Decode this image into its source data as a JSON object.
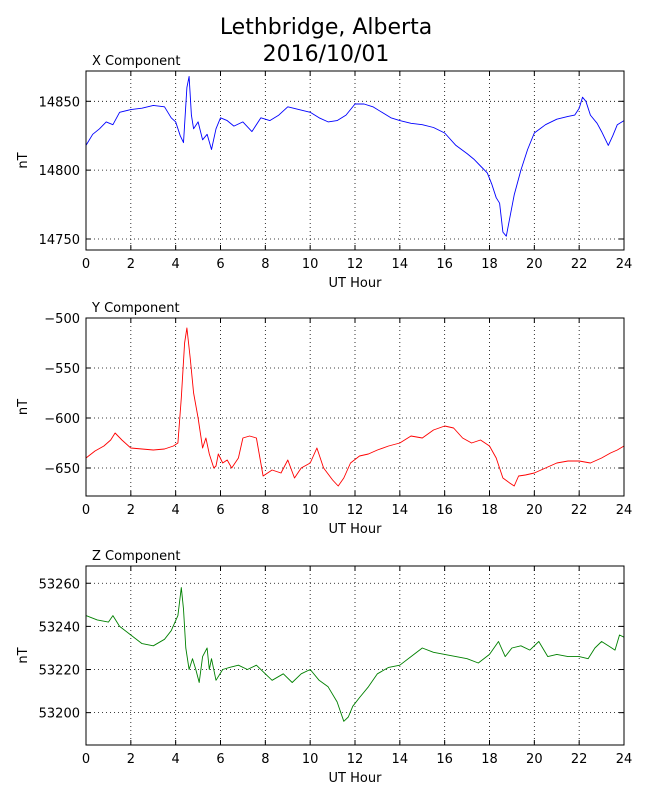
{
  "figure": {
    "title_line1": "Lethbridge, Alberta",
    "title_line2": "2016/10/01"
  },
  "chart_data": [
    {
      "type": "line",
      "title": "X Component",
      "xlabel": "UT Hour",
      "ylabel": "nT",
      "xlim": [
        0,
        24
      ],
      "ylim": [
        14742,
        14872
      ],
      "xticks": [
        0,
        2,
        4,
        6,
        8,
        10,
        12,
        14,
        16,
        18,
        20,
        22,
        24
      ],
      "yticks": [
        14750,
        14800,
        14850
      ],
      "grid": true,
      "color": "#0000ff",
      "series": [
        {
          "x": [
            0,
            0.3,
            0.6,
            0.9,
            1.2,
            1.5,
            2.0,
            2.5,
            3.0,
            3.5,
            3.8,
            4.0,
            4.2,
            4.35,
            4.5,
            4.6,
            4.7,
            4.8,
            5.0,
            5.2,
            5.4,
            5.6,
            5.8,
            6.0,
            6.3,
            6.6,
            7.0,
            7.4,
            7.8,
            8.2,
            8.6,
            9.0,
            9.5,
            10.0,
            10.4,
            10.8,
            11.2,
            11.6,
            12.0,
            12.4,
            12.8,
            13.2,
            13.6,
            14.0,
            14.5,
            15.0,
            15.5,
            16.0,
            16.5,
            17.0,
            17.3,
            17.6,
            17.9,
            18.1,
            18.3,
            18.45,
            18.6,
            18.75,
            18.9,
            19.1,
            19.4,
            19.7,
            20.0,
            20.5,
            21.0,
            21.5,
            21.8,
            22.0,
            22.15,
            22.3,
            22.5,
            22.8,
            23.0,
            23.3,
            23.5,
            23.7,
            24.0
          ],
          "y": [
            14818,
            14826,
            14830,
            14835,
            14833,
            14842,
            14844,
            14845,
            14847,
            14846,
            14838,
            14835,
            14825,
            14820,
            14860,
            14868,
            14840,
            14830,
            14835,
            14822,
            14826,
            14815,
            14830,
            14838,
            14836,
            14832,
            14835,
            14828,
            14838,
            14836,
            14840,
            14846,
            14844,
            14842,
            14838,
            14835,
            14836,
            14840,
            14848,
            14848,
            14846,
            14842,
            14838,
            14836,
            14834,
            14833,
            14831,
            14827,
            14818,
            14812,
            14808,
            14803,
            14798,
            14790,
            14780,
            14776,
            14755,
            14752,
            14765,
            14782,
            14800,
            14815,
            14827,
            14833,
            14837,
            14839,
            14840,
            14845,
            14853,
            14850,
            14840,
            14834,
            14828,
            14818,
            14825,
            14833,
            14836
          ]
        }
      ]
    },
    {
      "type": "line",
      "title": "Y Component",
      "xlabel": "UT Hour",
      "ylabel": "nT",
      "xlim": [
        0,
        24
      ],
      "ylim": [
        -678,
        -500
      ],
      "xticks": [
        0,
        2,
        4,
        6,
        8,
        10,
        12,
        14,
        16,
        18,
        20,
        22,
        24
      ],
      "yticks": [
        -500,
        -550,
        -600,
        -650
      ],
      "grid": true,
      "color": "#ff0000",
      "series": [
        {
          "x": [
            0,
            0.4,
            0.8,
            1.1,
            1.3,
            1.6,
            2.0,
            2.5,
            3.0,
            3.5,
            3.9,
            4.1,
            4.25,
            4.4,
            4.5,
            4.65,
            4.8,
            5.0,
            5.2,
            5.35,
            5.5,
            5.7,
            5.8,
            5.9,
            6.1,
            6.3,
            6.5,
            6.8,
            7.0,
            7.3,
            7.6,
            7.9,
            8.3,
            8.7,
            9.0,
            9.3,
            9.6,
            10.0,
            10.3,
            10.6,
            11.0,
            11.25,
            11.5,
            11.8,
            12.2,
            12.6,
            13.0,
            13.5,
            14.0,
            14.5,
            15.0,
            15.5,
            16.0,
            16.4,
            16.8,
            17.2,
            17.6,
            18.0,
            18.3,
            18.6,
            18.9,
            19.1,
            19.3,
            19.6,
            20.0,
            20.5,
            21.0,
            21.5,
            22.0,
            22.5,
            23.0,
            23.4,
            23.7,
            24.0
          ],
          "y": [
            -640,
            -633,
            -628,
            -622,
            -615,
            -622,
            -630,
            -631,
            -632,
            -631,
            -628,
            -625,
            -580,
            -525,
            -510,
            -540,
            -575,
            -600,
            -630,
            -620,
            -636,
            -650,
            -648,
            -636,
            -645,
            -642,
            -650,
            -640,
            -620,
            -618,
            -620,
            -658,
            -652,
            -655,
            -642,
            -660,
            -650,
            -645,
            -630,
            -650,
            -662,
            -668,
            -660,
            -645,
            -638,
            -636,
            -632,
            -628,
            -625,
            -618,
            -620,
            -612,
            -608,
            -610,
            -620,
            -625,
            -622,
            -628,
            -640,
            -660,
            -665,
            -668,
            -658,
            -657,
            -655,
            -650,
            -645,
            -643,
            -643,
            -645,
            -640,
            -635,
            -632,
            -628
          ]
        }
      ]
    },
    {
      "type": "line",
      "title": "Z Component",
      "xlabel": "UT Hour",
      "ylabel": "nT",
      "xlim": [
        0,
        24
      ],
      "ylim": [
        53185,
        53268
      ],
      "xticks": [
        0,
        2,
        4,
        6,
        8,
        10,
        12,
        14,
        16,
        18,
        20,
        22,
        24
      ],
      "yticks": [
        53200,
        53220,
        53240,
        53260
      ],
      "grid": true,
      "color": "#008000",
      "series": [
        {
          "x": [
            0,
            0.5,
            1.0,
            1.2,
            1.5,
            2.0,
            2.5,
            3.0,
            3.5,
            3.8,
            4.1,
            4.25,
            4.35,
            4.45,
            4.6,
            4.75,
            4.9,
            5.05,
            5.2,
            5.4,
            5.5,
            5.6,
            5.8,
            6.1,
            6.4,
            6.8,
            7.2,
            7.6,
            8.0,
            8.3,
            8.8,
            9.2,
            9.6,
            10.0,
            10.4,
            10.8,
            11.2,
            11.5,
            11.7,
            11.9,
            12.2,
            12.6,
            13.0,
            13.5,
            14.0,
            14.5,
            15.0,
            15.5,
            16.0,
            16.5,
            17.0,
            17.5,
            18.0,
            18.4,
            18.7,
            19.0,
            19.4,
            19.8,
            20.2,
            20.6,
            21.0,
            21.5,
            22.0,
            22.4,
            22.7,
            23.0,
            23.3,
            23.6,
            23.8,
            24.0
          ],
          "y": [
            53245,
            53243,
            53242,
            53245,
            53240,
            53236,
            53232,
            53231,
            53234,
            53238,
            53245,
            53258,
            53248,
            53230,
            53220,
            53225,
            53220,
            53214,
            53226,
            53230,
            53220,
            53225,
            53215,
            53220,
            53221,
            53222,
            53220,
            53222,
            53218,
            53215,
            53218,
            53214,
            53218,
            53220,
            53215,
            53212,
            53205,
            53196,
            53198,
            53203,
            53207,
            53212,
            53218,
            53221,
            53222,
            53226,
            53230,
            53228,
            53227,
            53226,
            53225,
            53223,
            53227,
            53233,
            53226,
            53230,
            53231,
            53229,
            53233,
            53226,
            53227,
            53226,
            53226,
            53225,
            53230,
            53233,
            53231,
            53229,
            53236,
            53235
          ]
        }
      ]
    }
  ]
}
